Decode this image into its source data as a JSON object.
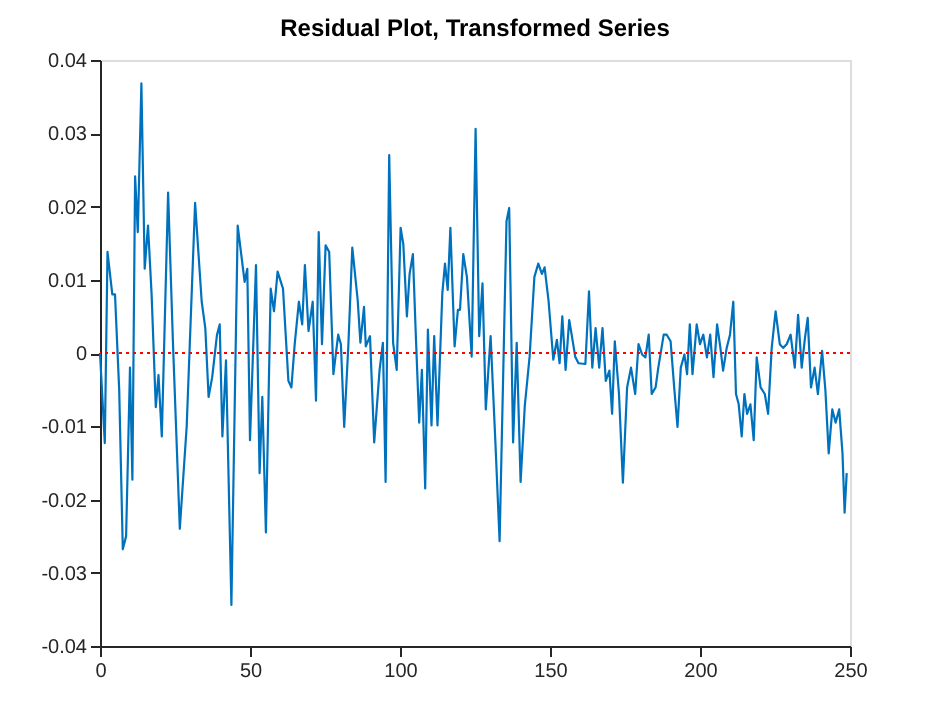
{
  "chart_data": {
    "type": "line",
    "title": "Residual Plot, Transformed Series",
    "series": [
      {
        "color": "#0072bd",
        "x": [
          0,
          1.6,
          2.5,
          4.1,
          5,
          6.4,
          7.6,
          8.7,
          10,
          10.8,
          11.7,
          12.6,
          13.8,
          14.9,
          16,
          17.2,
          18.6,
          19.5,
          20.6,
          22.7,
          24.3,
          26.6,
          28.9,
          31.7,
          33.9,
          35.1,
          36.2,
          37.4,
          39,
          39.9,
          40.8,
          42,
          43.8,
          45.9,
          48.2,
          49.1,
          50,
          52,
          53.2,
          54.1,
          55.3,
          56.9,
          58,
          59.2,
          61,
          62.8,
          63.8,
          64.9,
          66.3,
          67.4,
          68.3,
          69.5,
          70.9,
          72,
          72.9,
          74,
          75.2,
          76.4,
          77.8,
          79.4,
          80.3,
          81.4,
          82.8,
          84.1,
          85.9,
          86.8,
          88,
          88.6,
          90,
          91.4,
          93.2,
          94.3,
          95.2,
          96.4,
          97.7,
          98.9,
          100.2,
          101.1,
          102.3,
          103.2,
          104.3,
          105.2,
          106.4,
          107.3,
          108.4,
          109.3,
          110.5,
          111.4,
          112.5,
          114.1,
          115,
          115.9,
          116.8,
          118.2,
          119.3,
          120,
          121.1,
          122.3,
          123.9,
          125.2,
          126.4,
          127.5,
          128.6,
          130.2,
          131.8,
          133.2,
          135.5,
          136.4,
          137.7,
          138.9,
          140.2,
          141.6,
          143.2,
          144.8,
          146.1,
          147.3,
          148.2,
          149.5,
          151.1,
          152.3,
          153.2,
          154.1,
          155.2,
          156.4,
          157.3,
          158.4,
          159.5,
          161.8,
          163,
          164.1,
          165.2,
          166.4,
          167.5,
          168.6,
          169.8,
          170.7,
          171.6,
          173,
          174.3,
          175.7,
          177,
          178.4,
          179.5,
          180.7,
          181.8,
          182.9,
          183.9,
          185.2,
          186.1,
          187.9,
          188.9,
          190.2,
          191.4,
          192.5,
          193.6,
          194.8,
          195.7,
          196.6,
          197.5,
          198.9,
          200,
          201.1,
          202.3,
          203.4,
          204.5,
          205.7,
          206.8,
          207.7,
          208.9,
          210,
          211.1,
          212,
          212.9,
          213.9,
          214.8,
          215.7,
          216.8,
          217.9,
          218.9,
          220.2,
          221.6,
          222.7,
          223.9,
          225.2,
          226.6,
          227.7,
          228.9,
          230.2,
          231.6,
          232.7,
          233.9,
          235,
          235.9,
          237,
          238.2,
          239.3,
          240.7,
          241.8,
          242.9,
          244.1,
          245.2,
          246.4,
          247.5,
          248.2,
          248.9
        ],
        "values": [
          0,
          -0.0123,
          0.0138,
          0.008,
          0.008,
          -0.005,
          -0.0268,
          -0.025,
          -0.002,
          -0.0173,
          0.0241,
          0.0165,
          0.0368,
          0.0115,
          0.0174,
          0.008,
          -0.0074,
          -0.003,
          -0.0114,
          0.0219,
          0.0016,
          -0.024,
          -0.01,
          0.0205,
          0.007,
          0.0034,
          -0.006,
          -0.0033,
          0.0025,
          0.0039,
          -0.0114,
          -0.001,
          -0.0344,
          0.0174,
          0.0097,
          0.0115,
          -0.0119,
          0.012,
          -0.0164,
          -0.006,
          -0.0245,
          0.0088,
          0.0057,
          0.0111,
          0.0088,
          -0.0038,
          -0.0047,
          0.0012,
          0.007,
          0.0039,
          0.012,
          0.003,
          0.007,
          -0.0065,
          0.0165,
          0.0012,
          0.0147,
          0.0138,
          -0.0029,
          0.0025,
          0.0012,
          -0.0101,
          0.0012,
          0.0144,
          0.0072,
          0.0014,
          0.0063,
          0.0009,
          0.0023,
          -0.0122,
          -0.0023,
          0.0014,
          -0.0176,
          0.027,
          0.0014,
          -0.0023,
          0.0171,
          0.0149,
          0.005,
          0.0108,
          0.0135,
          0.0032,
          -0.0095,
          -0.0023,
          -0.0185,
          0.0032,
          -0.0099,
          0.0023,
          -0.0099,
          0.0081,
          0.0122,
          0.0086,
          0.0171,
          0.0009,
          0.0059,
          0.0059,
          0.0135,
          0.0104,
          -0.0005,
          0.0306,
          0.0023,
          0.0095,
          -0.0077,
          0.0023,
          -0.0122,
          -0.0257,
          0.018,
          0.0198,
          -0.0122,
          0.0014,
          -0.0176,
          -0.0072,
          -0.0005,
          0.0104,
          0.0122,
          0.0108,
          0.0117,
          0.0072,
          -0.0009,
          0.0018,
          -0.0014,
          0.005,
          -0.0023,
          0.0045,
          0.0023,
          -0.0005,
          -0.0014,
          -0.0015,
          0.0084,
          -0.002,
          0.0034,
          -0.002,
          0.0034,
          -0.0038,
          -0.0024,
          -0.0083,
          0.0016,
          -0.0056,
          -0.0177,
          -0.0047,
          -0.002,
          -0.0056,
          0.0012,
          -0.0002,
          -0.0006,
          0.0025,
          -0.0056,
          -0.0047,
          -0.002,
          0.0025,
          0.0025,
          0.0016,
          -0.0047,
          -0.0101,
          -0.002,
          -0.0002,
          -0.0029,
          0.0039,
          -0.0029,
          0.0039,
          0.0012,
          0.0025,
          -0.0006,
          0.0025,
          -0.0033,
          0.0039,
          0.0007,
          -0.0024,
          0.0007,
          0.0025,
          0.007,
          -0.0056,
          -0.007,
          -0.0114,
          -0.0056,
          -0.0083,
          -0.007,
          -0.0119,
          -0.0006,
          -0.0047,
          -0.0056,
          -0.0083,
          0.0007,
          0.0057,
          0.0012,
          0.0007,
          0.0012,
          0.0025,
          -0.002,
          0.0052,
          -0.002,
          0.0021,
          0.0048,
          -0.0047,
          -0.002,
          -0.0056,
          0.0003,
          -0.0051,
          -0.0137,
          -0.0077,
          -0.0095,
          -0.0077,
          -0.0137,
          -0.0218,
          -0.0164
        ]
      }
    ],
    "xlim": [
      0,
      250
    ],
    "xticks": [
      0,
      50,
      100,
      150,
      200,
      250
    ],
    "ylim": [
      -0.04,
      0.04
    ],
    "yticks": [
      -0.04,
      -0.03,
      -0.02,
      -0.01,
      0,
      0.01,
      0.02,
      0.03,
      0.04
    ],
    "ref_lines": [
      {
        "axis": "y",
        "value": 0,
        "color": "#ff0000",
        "line_style": "dotted"
      }
    ],
    "grid": false
  }
}
